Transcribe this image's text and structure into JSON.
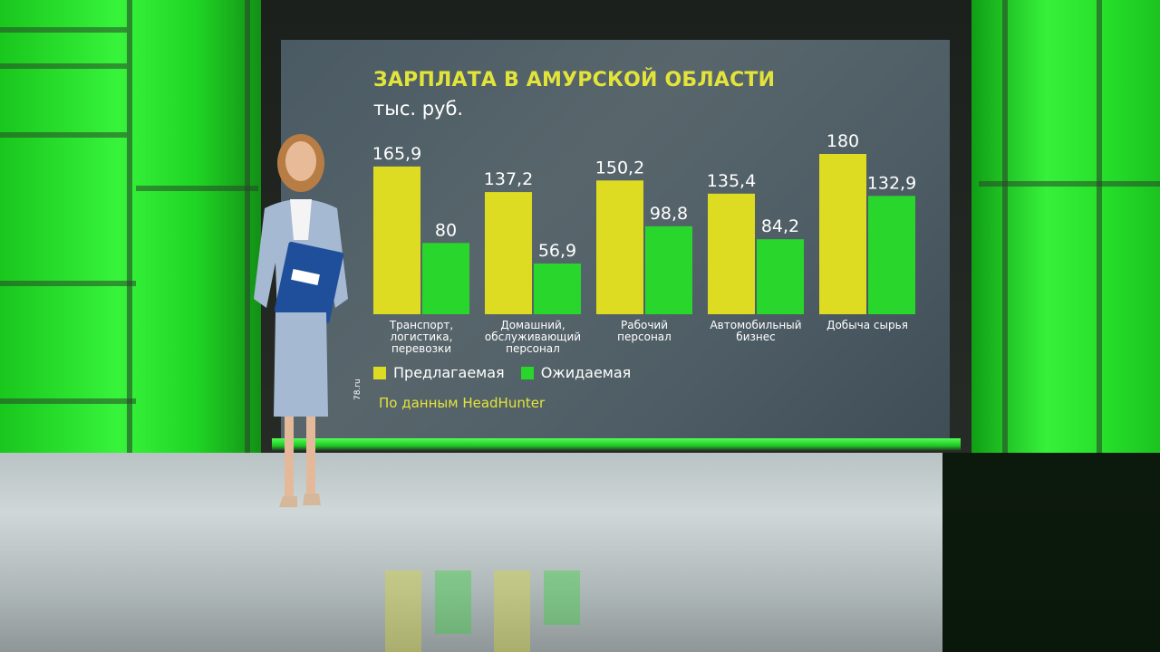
{
  "chart_data": {
    "type": "bar",
    "title": "ЗАРПЛАТА В АМУРСКОЙ ОБЛАСТИ",
    "subtitle": "тыс. руб.",
    "categories": [
      [
        "Транспорт,",
        "логистика,",
        "перевозки"
      ],
      [
        "Домашний,",
        "обслуживающий",
        "персонал"
      ],
      [
        "Рабочий",
        "персонал"
      ],
      [
        "Автомобильный",
        "бизнес"
      ],
      [
        "Добыча сырья"
      ]
    ],
    "series": [
      {
        "name": "Предлагаемая",
        "color": "#dedc22",
        "values": [
          165.9,
          137.2,
          150.2,
          135.4,
          180
        ],
        "labels": [
          "165,9",
          "137,2",
          "150,2",
          "135,4",
          "180"
        ]
      },
      {
        "name": "Ожидаемая",
        "color": "#28d62c",
        "values": [
          80,
          56.9,
          98.8,
          84.2,
          132.9
        ],
        "labels": [
          "80",
          "56,9",
          "98,8",
          "84,2",
          "132,9"
        ]
      }
    ],
    "ylim": [
      0,
      180
    ],
    "grid": false,
    "legend": "bottom-left",
    "source": "По данным HeadHunter",
    "watermark": "78.ru"
  }
}
